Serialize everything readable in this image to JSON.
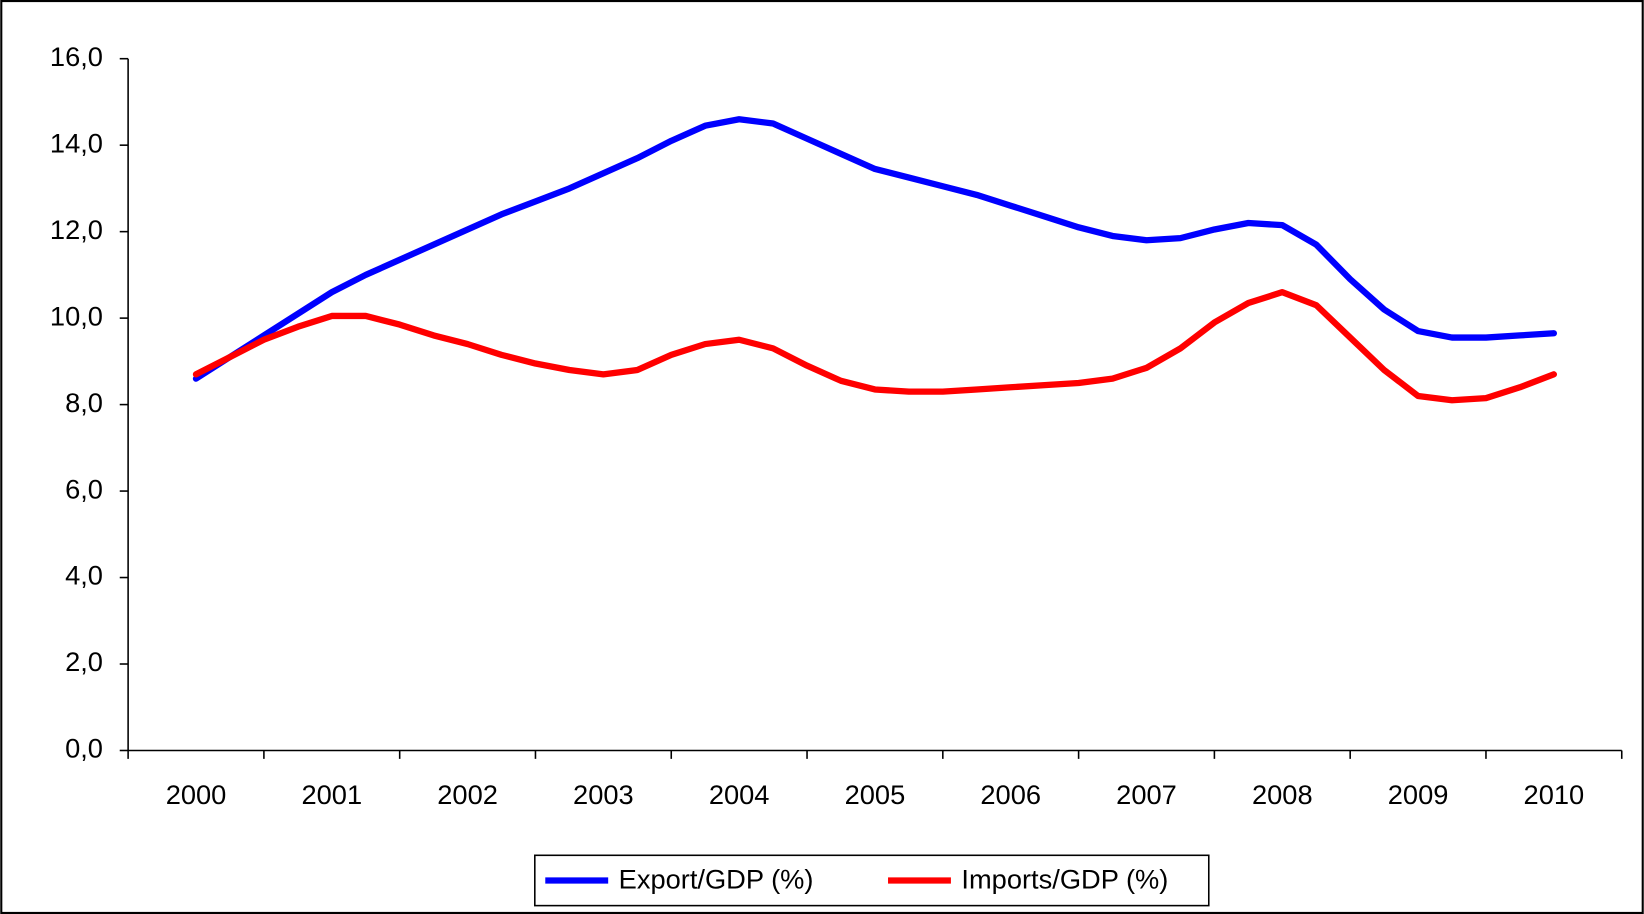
{
  "chart_data": {
    "type": "line",
    "categories": [
      "2000",
      null,
      null,
      null,
      "2001",
      null,
      null,
      null,
      "2002",
      null,
      null,
      null,
      "2003",
      null,
      null,
      null,
      "2004",
      null,
      null,
      null,
      "2005",
      null,
      null,
      null,
      "2006",
      null,
      null,
      null,
      "2007",
      null,
      null,
      null,
      "2008",
      null,
      null,
      null,
      "2009",
      null,
      null,
      null,
      "2010"
    ],
    "series": [
      {
        "name": "Export/GDP (%)",
        "color": "#0000ff",
        "values": [
          8.6,
          9.1,
          9.6,
          10.1,
          10.6,
          11.0,
          11.35,
          11.7,
          12.05,
          12.4,
          12.7,
          13.0,
          13.35,
          13.7,
          14.1,
          14.45,
          14.6,
          14.5,
          14.15,
          13.8,
          13.45,
          13.25,
          13.05,
          12.85,
          12.6,
          12.35,
          12.1,
          11.9,
          11.8,
          11.85,
          12.05,
          12.2,
          12.15,
          11.7,
          10.9,
          10.2,
          9.7,
          9.55,
          9.55,
          9.6,
          9.65
        ]
      },
      {
        "name": "Imports/GDP (%)",
        "color": "#ff0000",
        "values": [
          8.7,
          9.1,
          9.5,
          9.8,
          10.05,
          10.05,
          9.85,
          9.6,
          9.4,
          9.15,
          8.95,
          8.8,
          8.7,
          8.8,
          9.15,
          9.4,
          9.5,
          9.3,
          8.9,
          8.55,
          8.35,
          8.3,
          8.3,
          8.35,
          8.4,
          8.45,
          8.5,
          8.6,
          8.85,
          9.3,
          9.9,
          10.35,
          10.6,
          10.3,
          9.55,
          8.8,
          8.2,
          8.1,
          8.15,
          8.4,
          8.7
        ]
      }
    ],
    "ylim": [
      0,
      16
    ],
    "yticks": [
      {
        "value": 0,
        "label": "0,0"
      },
      {
        "value": 2,
        "label": "2,0"
      },
      {
        "value": 4,
        "label": "4,0"
      },
      {
        "value": 6,
        "label": "6,0"
      },
      {
        "value": 8,
        "label": "8,0"
      },
      {
        "value": 10,
        "label": "10,0"
      },
      {
        "value": 12,
        "label": "12,0"
      },
      {
        "value": 14,
        "label": "14,0"
      },
      {
        "value": 16,
        "label": "16,0"
      }
    ],
    "legend": "bottom"
  }
}
